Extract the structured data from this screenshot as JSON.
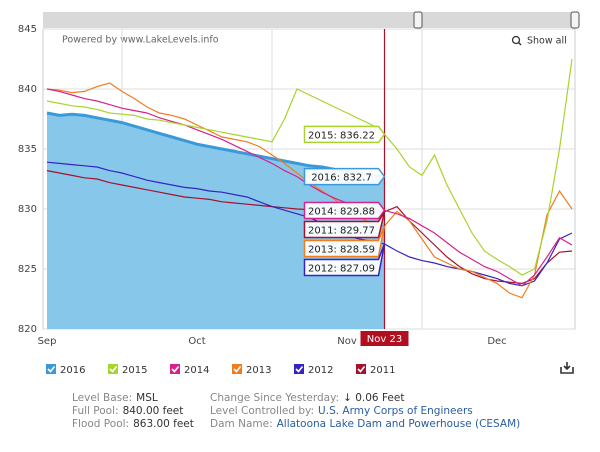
{
  "header": {
    "powered_by": "Powered by www.LakeLevels.info",
    "show_all": "Show all"
  },
  "chart_data": {
    "type": "line",
    "categories": [
      "Sep",
      null,
      null,
      null,
      null,
      null,
      null,
      null,
      null,
      null,
      null,
      null,
      "Oct",
      null,
      null,
      null,
      null,
      null,
      null,
      null,
      null,
      null,
      null,
      null,
      "Nov",
      null,
      null,
      null,
      null,
      null,
      null,
      null,
      null,
      null,
      null,
      null,
      "Dec",
      null,
      null,
      null,
      null,
      null,
      null
    ],
    "ylim": [
      820,
      845
    ],
    "yticks": [
      820,
      825,
      830,
      835,
      840,
      845
    ],
    "grid": true,
    "crosshair_label": "Nov 23",
    "series": [
      {
        "name": "2016",
        "color": "#3a9ad9",
        "area_color": "#87c8ea",
        "area": true,
        "tooltip": "2016: 832.7",
        "values": [
          838.0,
          837.8,
          837.9,
          837.8,
          837.6,
          837.4,
          837.2,
          836.9,
          836.6,
          836.3,
          836.0,
          835.7,
          835.4,
          835.2,
          835.0,
          834.8,
          834.6,
          834.4,
          834.2,
          834.0,
          833.8,
          833.6,
          833.5,
          833.3,
          833.1,
          833.0,
          832.8,
          832.7,
          null,
          null,
          null,
          null,
          null,
          null,
          null,
          null,
          null,
          null,
          null,
          null,
          null,
          null,
          null
        ]
      },
      {
        "name": "2015",
        "color": "#a8d42b",
        "tooltip": "2015: 836.22",
        "values": [
          839.0,
          838.8,
          838.6,
          838.5,
          838.3,
          838.0,
          837.9,
          837.8,
          837.5,
          837.4,
          837.2,
          837.0,
          836.8,
          836.6,
          836.4,
          836.2,
          836.0,
          835.8,
          835.6,
          837.5,
          840.0,
          839.5,
          839.0,
          838.5,
          838.0,
          837.5,
          837.0,
          836.22,
          835.0,
          833.5,
          832.8,
          834.5,
          832.0,
          830.0,
          828.0,
          826.5,
          825.8,
          825.2,
          824.5,
          825.0,
          829.0,
          835.0,
          842.5
        ]
      },
      {
        "name": "2014",
        "color": "#d4238e",
        "tooltip": "2014: 829.88",
        "values": [
          840.0,
          839.8,
          839.5,
          839.2,
          839.0,
          838.7,
          838.4,
          838.2,
          838.0,
          837.6,
          837.3,
          837.0,
          836.6,
          836.2,
          835.8,
          835.3,
          834.8,
          834.3,
          833.8,
          833.2,
          832.7,
          832.0,
          831.4,
          830.9,
          830.5,
          830.2,
          830.0,
          829.88,
          829.6,
          829.2,
          828.6,
          828.0,
          827.2,
          826.4,
          825.8,
          825.2,
          824.8,
          824.2,
          823.6,
          824.5,
          826.0,
          827.6,
          827.0
        ]
      },
      {
        "name": "2013",
        "color": "#f07c1e",
        "tooltip": "2013: 828.59",
        "values": [
          840.0,
          839.9,
          839.7,
          839.8,
          840.2,
          840.5,
          839.8,
          839.2,
          838.5,
          838.0,
          837.8,
          837.5,
          837.0,
          836.5,
          836.0,
          835.8,
          835.6,
          835.2,
          834.5,
          833.8,
          833.0,
          832.2,
          831.5,
          830.8,
          830.0,
          829.3,
          828.8,
          828.59,
          829.8,
          829.0,
          827.5,
          826.0,
          825.5,
          825.0,
          824.8,
          824.3,
          823.8,
          823.0,
          822.6,
          824.5,
          829.5,
          831.5,
          830.0
        ]
      },
      {
        "name": "2012",
        "color": "#3624c0",
        "tooltip": "2012: 827.09",
        "values": [
          833.9,
          833.8,
          833.7,
          833.6,
          833.5,
          833.2,
          833.0,
          832.7,
          832.4,
          832.2,
          832.0,
          831.8,
          831.7,
          831.5,
          831.4,
          831.2,
          831.0,
          830.6,
          830.2,
          829.9,
          829.6,
          829.3,
          828.8,
          828.3,
          827.8,
          827.5,
          827.3,
          827.09,
          826.5,
          826.0,
          825.7,
          825.5,
          825.2,
          825.0,
          824.8,
          824.5,
          824.2,
          823.8,
          823.6,
          824.0,
          825.5,
          827.5,
          828.0
        ]
      },
      {
        "name": "2011",
        "color": "#a4122c",
        "tooltip": "2011: 829.77",
        "values": [
          833.2,
          833.0,
          832.8,
          832.6,
          832.5,
          832.2,
          832.0,
          831.8,
          831.6,
          831.4,
          831.2,
          831.0,
          830.9,
          830.8,
          830.6,
          830.5,
          830.4,
          830.3,
          830.2,
          830.1,
          830.0,
          829.95,
          829.9,
          829.85,
          829.8,
          829.8,
          829.8,
          829.77,
          830.2,
          829.0,
          828.0,
          827.0,
          826.0,
          825.2,
          824.6,
          824.2,
          824.0,
          823.9,
          823.8,
          824.2,
          825.5,
          826.4,
          826.5
        ]
      }
    ]
  },
  "info": [
    [
      {
        "label": "Level Base:",
        "value": "MSL"
      },
      {
        "label": "Full Pool:",
        "value": "840.00 feet"
      },
      {
        "label": "Flood Pool:",
        "value": "863.00 feet"
      }
    ],
    [
      {
        "label": "Change Since Yesterday:",
        "value": "↓ 0.06 Feet"
      },
      {
        "label": "Level Controlled by:",
        "value": "U.S. Army Corps of Engineers"
      },
      {
        "label": "Dam Name:",
        "value": "Allatoona Lake Dam and Powerhouse (CESAM)"
      }
    ]
  ]
}
